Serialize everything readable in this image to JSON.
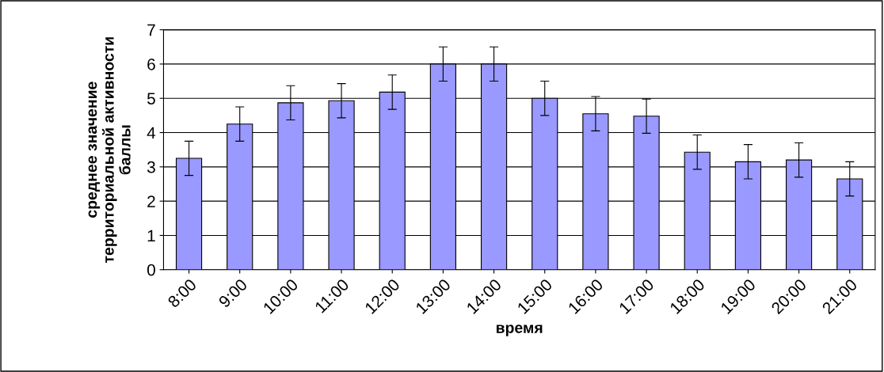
{
  "chart_data": {
    "type": "bar",
    "xlabel": "время",
    "ylabel": "среднее значение\nтерриториальной активности\nбаллы",
    "categories": [
      "8:00",
      "9:00",
      "10:00",
      "11:00",
      "12:00",
      "13:00",
      "14:00",
      "15:00",
      "16:00",
      "17:00",
      "18:00",
      "19:00",
      "20:00",
      "21:00"
    ],
    "values": [
      3.25,
      4.25,
      4.87,
      4.93,
      5.18,
      6.0,
      6.0,
      5.0,
      4.55,
      4.48,
      3.43,
      3.15,
      3.2,
      2.65
    ],
    "errors": [
      0.5,
      0.5,
      0.5,
      0.5,
      0.5,
      0.5,
      0.5,
      0.5,
      0.5,
      0.5,
      0.5,
      0.5,
      0.5,
      0.5
    ],
    "color": "#9999ff",
    "ylim": [
      0,
      7
    ],
    "yticks": [
      0,
      1,
      2,
      3,
      4,
      5,
      6,
      7
    ],
    "grid": "y",
    "legend": false
  }
}
